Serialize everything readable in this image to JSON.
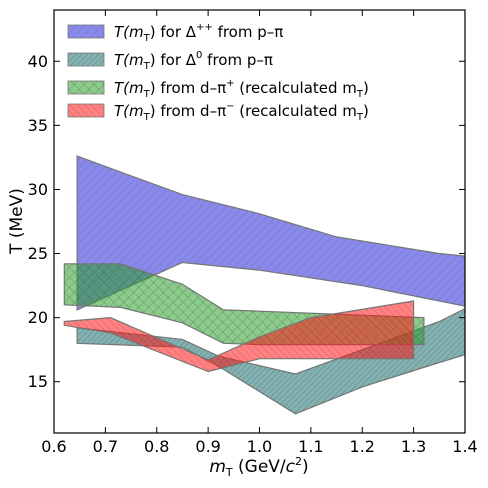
{
  "chart_data": {
    "type": "area",
    "title": "",
    "xlabel": "mT (GeV/c2)",
    "xlabel_parts": {
      "var": "m",
      "sub": "T",
      "rest": " (GeV/",
      "c": "c",
      "sup": "2",
      "close": ")"
    },
    "ylabel": "T (MeV)",
    "xlim": [
      0.6,
      1.4
    ],
    "ylim": [
      11,
      44
    ],
    "xticks": [
      0.6,
      0.7,
      0.8,
      0.9,
      1.0,
      1.1,
      1.2,
      1.3,
      1.4
    ],
    "xtick_labels": [
      "0.6",
      "0.7",
      "0.8",
      "0.9",
      "1.0",
      "1.1",
      "1.2",
      "1.3",
      "1.4"
    ],
    "yticks": [
      15,
      20,
      25,
      30,
      35,
      40
    ],
    "ytick_labels": [
      "15",
      "20",
      "25",
      "30",
      "35",
      "40"
    ],
    "grid": false,
    "legend_placement": "upper-left",
    "series": [
      {
        "name": "T(mT) for Δ++ from p–π",
        "legend": {
          "a": "T(m",
          "sub": "T",
          "b": ") for Δ",
          "sup": "++",
          "c": " from p–π"
        },
        "color": "#3a3adf",
        "hatch": "diag",
        "upper": [
          [
            0.645,
            32.6
          ],
          [
            0.85,
            29.6
          ],
          [
            1.0,
            28.1
          ],
          [
            1.15,
            26.3
          ],
          [
            1.35,
            25.0
          ],
          [
            1.4,
            24.8
          ]
        ],
        "lower": [
          [
            0.645,
            20.6
          ],
          [
            0.85,
            24.3
          ],
          [
            1.0,
            23.7
          ],
          [
            1.2,
            22.5
          ],
          [
            1.35,
            21.3
          ],
          [
            1.4,
            20.9
          ]
        ]
      },
      {
        "name": "T(mT) for Δ0 from p–π",
        "legend": {
          "a": "T(m",
          "sub": "T",
          "b": ") for Δ",
          "sup": "0",
          "c": " from p–π"
        },
        "color": "#2f7f7f",
        "hatch": "diag2",
        "upper": [
          [
            0.645,
            19.2
          ],
          [
            0.85,
            18.3
          ],
          [
            0.92,
            17.0
          ],
          [
            1.07,
            15.6
          ],
          [
            1.2,
            17.5
          ],
          [
            1.35,
            19.7
          ],
          [
            1.4,
            20.7
          ]
        ],
        "lower": [
          [
            0.645,
            18.0
          ],
          [
            0.85,
            17.7
          ],
          [
            0.92,
            16.2
          ],
          [
            1.07,
            12.5
          ],
          [
            1.2,
            14.6
          ],
          [
            1.35,
            16.5
          ],
          [
            1.4,
            17.1
          ]
        ]
      },
      {
        "name": "T(mT) from d–π+ (recalculated mT)",
        "legend": {
          "a": "T(m",
          "sub": "T",
          "b": ") from d–π",
          "sup": "+",
          "c": " (recalculated m",
          "sub2": "T",
          "d": ")"
        },
        "color": "#2ca02c",
        "hatch": "cross",
        "upper": [
          [
            0.62,
            24.2
          ],
          [
            0.73,
            24.2
          ],
          [
            0.85,
            22.6
          ],
          [
            0.93,
            20.6
          ],
          [
            1.0,
            20.5
          ],
          [
            1.32,
            20.0
          ]
        ],
        "lower": [
          [
            0.62,
            21.0
          ],
          [
            0.73,
            20.8
          ],
          [
            0.85,
            19.6
          ],
          [
            0.93,
            18.0
          ],
          [
            1.0,
            17.9
          ],
          [
            1.32,
            17.9
          ]
        ]
      },
      {
        "name": "T(mT) from d–π− (recalculated mT)",
        "legend": {
          "a": "T(m",
          "sub": "T",
          "b": ") from d–π",
          "sup": "−",
          "c": " (recalculated m",
          "sub2": "T",
          "d": ")"
        },
        "color": "#ff1a1a",
        "hatch": "diag3",
        "upper": [
          [
            0.62,
            19.7
          ],
          [
            0.71,
            20.0
          ],
          [
            0.9,
            16.7
          ],
          [
            1.0,
            18.5
          ],
          [
            1.1,
            20.0
          ],
          [
            1.3,
            21.3
          ]
        ],
        "lower": [
          [
            0.62,
            19.4
          ],
          [
            0.71,
            18.8
          ],
          [
            0.9,
            15.8
          ],
          [
            1.0,
            16.8
          ],
          [
            1.1,
            16.8
          ],
          [
            1.3,
            16.8
          ]
        ]
      }
    ]
  }
}
